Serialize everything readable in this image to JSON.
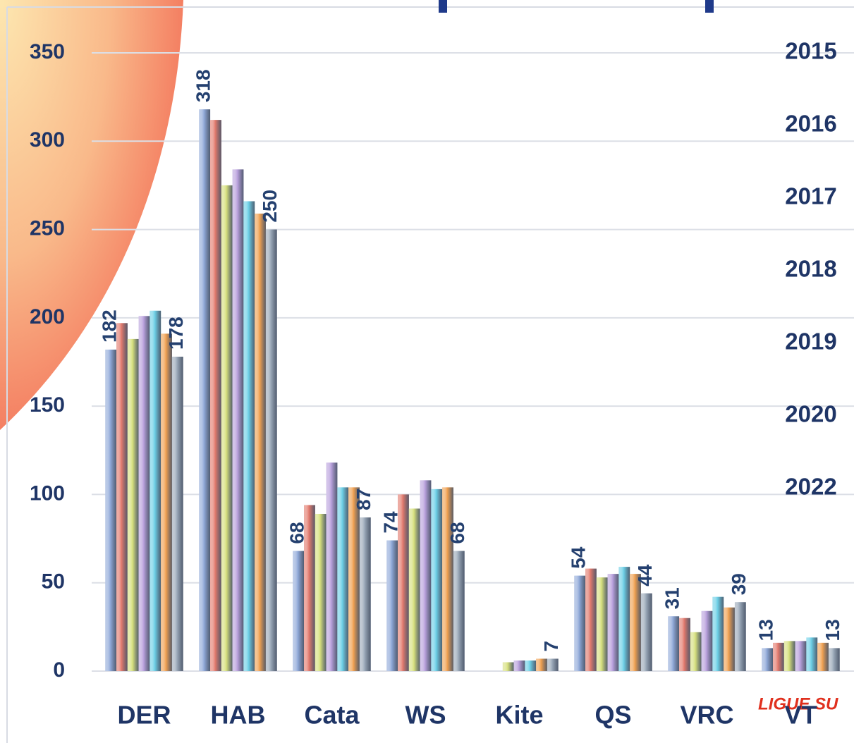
{
  "chart_data": {
    "type": "bar",
    "categories": [
      "DER",
      "HAB",
      "Cata",
      "WS",
      "Kite",
      "QS",
      "VRC",
      "VT"
    ],
    "series": [
      {
        "name": "2015",
        "color": "#8fa8d8",
        "values": [
          182,
          318,
          68,
          74,
          0,
          54,
          31,
          13
        ]
      },
      {
        "name": "2016",
        "color": "#e2796c",
        "values": [
          197,
          312,
          94,
          100,
          0,
          58,
          30,
          16
        ]
      },
      {
        "name": "2017",
        "color": "#d6df7c",
        "values": [
          188,
          275,
          89,
          92,
          5,
          53,
          22,
          17
        ]
      },
      {
        "name": "2018",
        "color": "#b8a0dc",
        "values": [
          201,
          284,
          118,
          108,
          6,
          55,
          34,
          17
        ]
      },
      {
        "name": "2019",
        "color": "#6ccfe6",
        "values": [
          204,
          266,
          104,
          103,
          6,
          59,
          42,
          19
        ]
      },
      {
        "name": "2020",
        "color": "#f0a050",
        "values": [
          191,
          259,
          104,
          104,
          7,
          55,
          36,
          16
        ]
      },
      {
        "name": "2022",
        "color": "#9aa8b8",
        "values": [
          178,
          250,
          87,
          68,
          7,
          44,
          39,
          13
        ]
      }
    ],
    "ylim": [
      0,
      350
    ],
    "yticks": [
      0,
      50,
      100,
      150,
      200,
      250,
      300,
      350
    ],
    "grid": true,
    "legend": "right",
    "brand_text": "LIGUE SU"
  }
}
